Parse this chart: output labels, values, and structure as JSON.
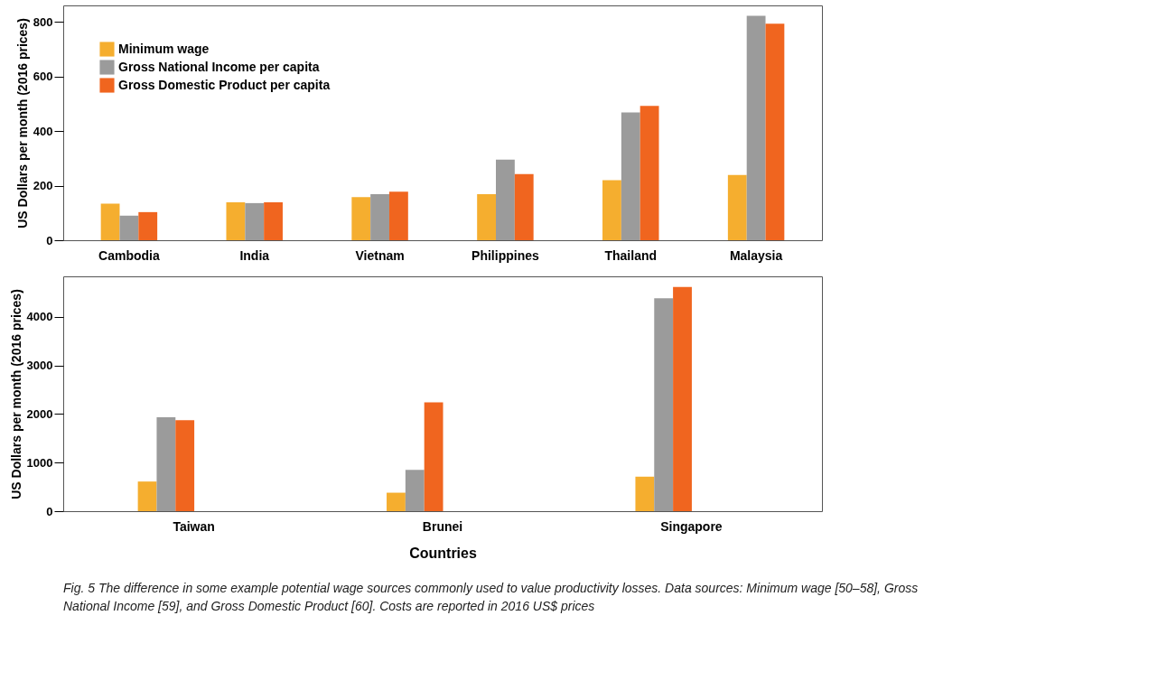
{
  "chart_data": [
    {
      "type": "bar",
      "ylabel": "US Dollars per month (2016 prices)",
      "categories": [
        "Cambodia",
        "India",
        "Vietnam",
        "Philippines",
        "Thailand",
        "Malaysia"
      ],
      "ylim": [
        0,
        860
      ],
      "yticks": [
        0,
        200,
        400,
        600,
        800
      ],
      "grid": false,
      "legend": "top left",
      "series": [
        {
          "name": "Minimum wage",
          "color": "#f5ae2f",
          "values": [
            134,
            139,
            158,
            169,
            220,
            239
          ]
        },
        {
          "name": "Gross National Income per capita",
          "color": "#9b9b9b",
          "values": [
            90,
            136,
            169,
            295,
            468,
            822
          ]
        },
        {
          "name": "Gross Domestic Product per capita",
          "color": "#f0651f",
          "values": [
            103,
            139,
            178,
            242,
            492,
            793
          ]
        }
      ]
    },
    {
      "type": "bar",
      "ylabel": "US Dollars per month (2016 prices)",
      "xlabel": "Countries",
      "categories": [
        "Taiwan",
        "Brunei",
        "Singapore"
      ],
      "ylim": [
        0,
        4830
      ],
      "yticks": [
        0,
        1000,
        2000,
        3000,
        4000
      ],
      "grid": false,
      "legend": "top left",
      "series": [
        {
          "name": "Minimum wage",
          "color": "#f5ae2f",
          "values": [
            610,
            380,
            710
          ]
        },
        {
          "name": "Gross National Income per capita",
          "color": "#9b9b9b",
          "values": [
            1930,
            850,
            4380
          ]
        },
        {
          "name": "Gross Domestic Product per capita",
          "color": "#f0651f",
          "values": [
            1870,
            2240,
            4610
          ]
        }
      ],
      "annotations": [
        "Fig. 5 The difference in some example potential wage sources commonly used to value productivity losses. Data sources: Minimum wage [50–58], Gross National Income [59], and Gross Domestic Product [60]. Costs are reported in 2016 US$ prices"
      ]
    }
  ]
}
